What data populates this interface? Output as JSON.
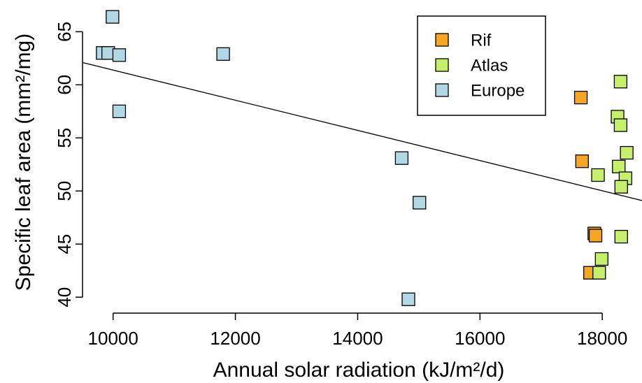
{
  "chart_data": {
    "type": "scatter",
    "title": "",
    "xlabel": "Annual solar radiation (kJ/m²/d)",
    "ylabel": "Specific leaf area (mm²/mg)",
    "xlim": [
      9500,
      18650
    ],
    "ylim": [
      38.5,
      67
    ],
    "xticks": [
      10000,
      12000,
      14000,
      16000,
      18000
    ],
    "yticks": [
      40,
      45,
      50,
      55,
      60,
      65
    ],
    "grid": false,
    "legend_position": "top-right",
    "trendline": {
      "x": [
        9500,
        18650
      ],
      "y": [
        62.1,
        49.1
      ]
    },
    "series": [
      {
        "name": "Rif",
        "color": "#f5a623",
        "points": [
          {
            "x": 17650,
            "y": 58.8
          },
          {
            "x": 17670,
            "y": 52.8
          },
          {
            "x": 17870,
            "y": 46.0
          },
          {
            "x": 17890,
            "y": 45.8
          },
          {
            "x": 17800,
            "y": 42.3
          }
        ]
      },
      {
        "name": "Atlas",
        "color": "#c6ef6a",
        "points": [
          {
            "x": 18300,
            "y": 60.3
          },
          {
            "x": 18250,
            "y": 57.0
          },
          {
            "x": 18300,
            "y": 56.2
          },
          {
            "x": 18400,
            "y": 53.6
          },
          {
            "x": 18270,
            "y": 52.3
          },
          {
            "x": 17930,
            "y": 51.5
          },
          {
            "x": 18380,
            "y": 51.2
          },
          {
            "x": 18310,
            "y": 50.4
          },
          {
            "x": 18310,
            "y": 45.7
          },
          {
            "x": 17990,
            "y": 43.6
          },
          {
            "x": 17950,
            "y": 42.3
          }
        ]
      },
      {
        "name": "Europe",
        "color": "#b2d8e6",
        "points": [
          {
            "x": 9990,
            "y": 66.4
          },
          {
            "x": 9830,
            "y": 63.0
          },
          {
            "x": 9920,
            "y": 63.0
          },
          {
            "x": 10100,
            "y": 62.8
          },
          {
            "x": 11800,
            "y": 62.9
          },
          {
            "x": 10100,
            "y": 57.5
          },
          {
            "x": 14720,
            "y": 53.1
          },
          {
            "x": 15010,
            "y": 48.9
          },
          {
            "x": 14830,
            "y": 39.8
          }
        ]
      }
    ]
  }
}
